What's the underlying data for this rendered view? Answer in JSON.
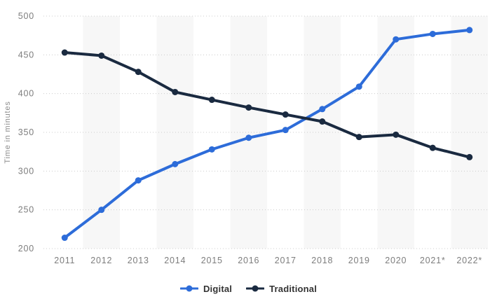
{
  "chart_data": {
    "type": "line",
    "title": "",
    "ylabel": "Time in minutes",
    "xlabel": "",
    "categories": [
      "2011",
      "2012",
      "2013",
      "2014",
      "2015",
      "2016",
      "2017",
      "2018",
      "2019",
      "2020",
      "2021*",
      "2022*"
    ],
    "series": [
      {
        "name": "Digital",
        "color": "#2d6cd9",
        "values": [
          214,
          250,
          288,
          309,
          328,
          343,
          353,
          380,
          409,
          470,
          477,
          482
        ]
      },
      {
        "name": "Traditional",
        "color": "#1a2a40",
        "values": [
          453,
          449,
          428,
          402,
          392,
          382,
          373,
          364,
          344,
          347,
          330,
          318
        ]
      }
    ],
    "ylim": [
      200,
      500
    ],
    "yticks": [
      200,
      250,
      300,
      350,
      400,
      450,
      500
    ],
    "grid": "horizontal-dotted",
    "legend_position": "bottom",
    "plot_bands": "alternating vertical bands on even-year columns"
  },
  "colors": {
    "background": "#ffffff",
    "band": "#f7f7f7",
    "gridline": "#cccccc",
    "tick_label": "#7d7d7d",
    "axis_title": "#8c8c8c",
    "legend_text": "#333333",
    "digital": "#2d6cd9",
    "traditional": "#1a2a40"
  }
}
